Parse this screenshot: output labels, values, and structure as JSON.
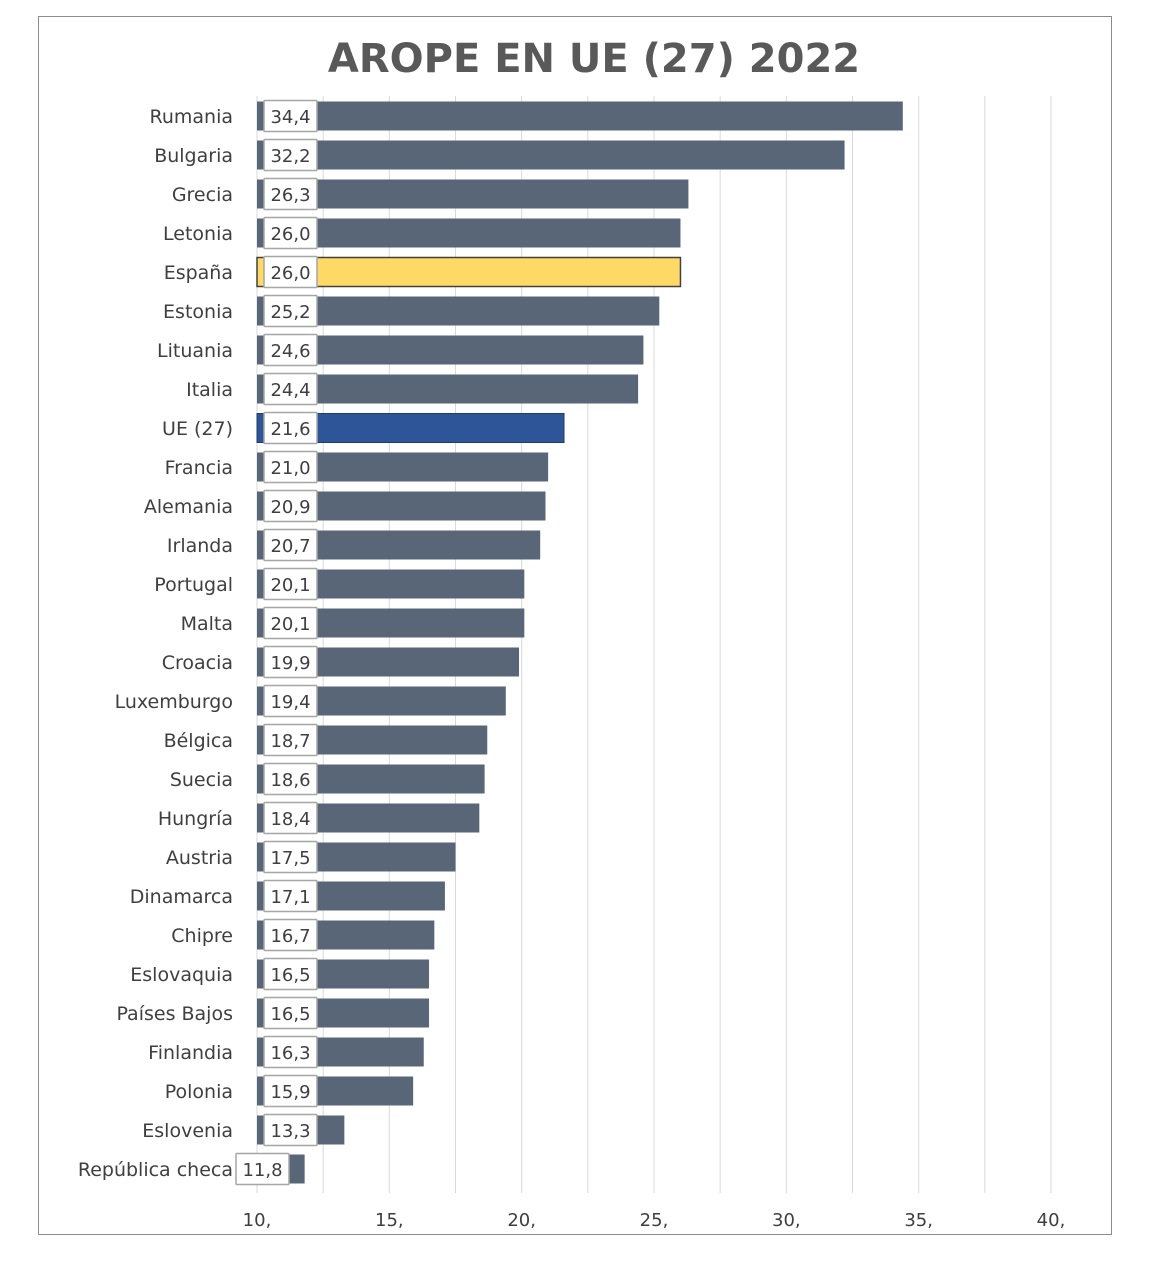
{
  "colors": {
    "bar_default": "#596677",
    "bar_highlight_spain": "#ffd966",
    "bar_highlight_eu": "#2e5597",
    "grid": "#d9d9d9",
    "label_box_border": "#a6a6a6",
    "title": "#595959"
  },
  "chart_data": {
    "type": "bar",
    "orientation": "horizontal",
    "title": "AROPE EN UE (27) 2022",
    "xlabel": "",
    "ylabel": "",
    "xlim": [
      10,
      40
    ],
    "xticks": [
      10,
      15,
      20,
      25,
      30,
      35,
      40
    ],
    "xtick_labels": [
      "10,",
      "15,",
      "20,",
      "25,",
      "30,",
      "35,",
      "40,"
    ],
    "grid": true,
    "legend": "none",
    "categories": [
      "Rumania",
      "Bulgaria",
      "Grecia",
      "Letonia",
      "España",
      "Estonia",
      "Lituania",
      "Italia",
      "UE (27)",
      "Francia",
      "Alemania",
      "Irlanda",
      "Portugal",
      "Malta",
      "Croacia",
      "Luxemburgo",
      "Bélgica",
      "Suecia",
      "Hungría",
      "Austria",
      "Dinamarca",
      "Chipre",
      "Eslovaquia",
      "Países Bajos",
      "Finlandia",
      "Polonia",
      "Eslovenia",
      "República checa"
    ],
    "values": [
      34.4,
      32.2,
      26.3,
      26.0,
      26.0,
      25.2,
      24.6,
      24.4,
      21.6,
      21.0,
      20.9,
      20.7,
      20.1,
      20.1,
      19.9,
      19.4,
      18.7,
      18.6,
      18.4,
      17.5,
      17.1,
      16.7,
      16.5,
      16.5,
      16.3,
      15.9,
      13.3,
      11.8
    ],
    "value_labels": [
      "34,4",
      "32,2",
      "26,3",
      "26,0",
      "26,0",
      "25,2",
      "24,6",
      "24,4",
      "21,6",
      "21,0",
      "20,9",
      "20,7",
      "20,1",
      "20,1",
      "19,9",
      "19,4",
      "18,7",
      "18,6",
      "18,4",
      "17,5",
      "17,1",
      "16,7",
      "16,5",
      "16,5",
      "16,3",
      "15,9",
      "13,3",
      "11,8"
    ],
    "highlights": {
      "España": "bar_highlight_spain",
      "UE (27)": "bar_highlight_eu"
    }
  }
}
